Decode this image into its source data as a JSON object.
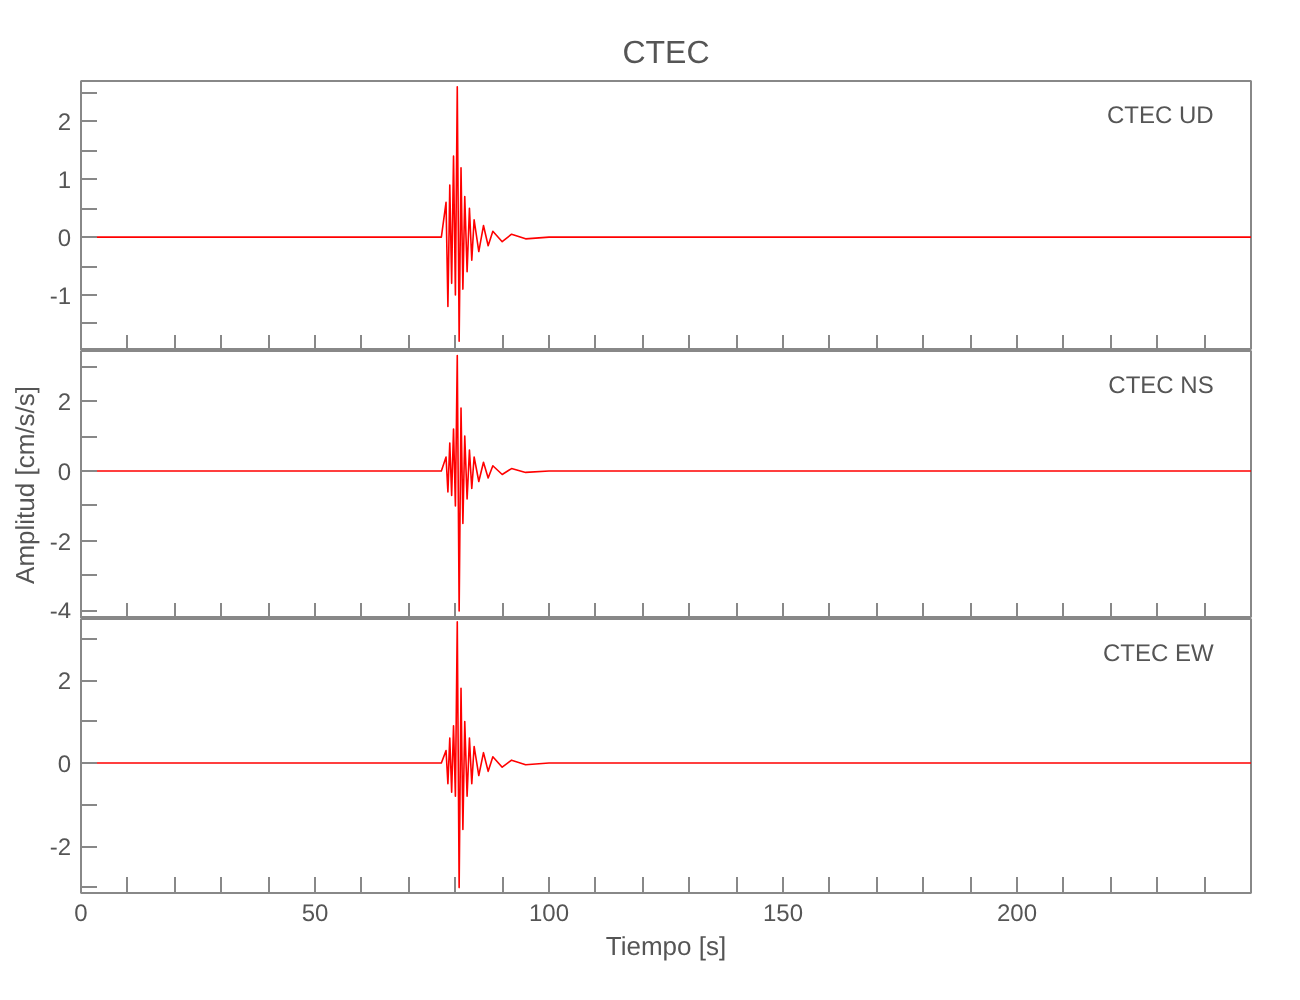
{
  "chart_data": [
    {
      "type": "line",
      "title": "CTEC",
      "annotations": [
        "CTEC   UD"
      ],
      "tick_labels": "y",
      "xlim": [
        0,
        250
      ],
      "ylim": [
        -1.97,
        2.7
      ],
      "xticks": [
        {
          "value": 0,
          "label": null
        },
        {
          "value": 10,
          "label": null
        },
        {
          "value": 20,
          "label": null
        },
        {
          "value": 30,
          "label": null
        },
        {
          "value": 40,
          "label": null
        },
        {
          "value": 50,
          "label": null
        },
        {
          "value": 60,
          "label": null
        },
        {
          "value": 70,
          "label": null
        },
        {
          "value": 80,
          "label": null
        },
        {
          "value": 90,
          "label": null
        },
        {
          "value": 100,
          "label": null
        },
        {
          "value": 110,
          "label": null
        },
        {
          "value": 120,
          "label": null
        },
        {
          "value": 130,
          "label": null
        },
        {
          "value": 140,
          "label": null
        },
        {
          "value": 150,
          "label": null
        },
        {
          "value": 160,
          "label": null
        },
        {
          "value": 170,
          "label": null
        },
        {
          "value": 180,
          "label": null
        },
        {
          "value": 190,
          "label": null
        },
        {
          "value": 200,
          "label": null
        },
        {
          "value": 210,
          "label": null
        },
        {
          "value": 220,
          "label": null
        },
        {
          "value": 230,
          "label": null
        },
        {
          "value": 240,
          "label": null
        }
      ],
      "yticks": [
        {
          "value": -1.5,
          "label": null
        },
        -1,
        {
          "value": -0.5,
          "label": null
        },
        0,
        {
          "value": 0.5,
          "label": null
        },
        1,
        {
          "value": 1.5,
          "label": null
        },
        2,
        {
          "value": 2.5,
          "label": null
        }
      ],
      "x": [
        0,
        77,
        78,
        78.4,
        78.8,
        79.2,
        79.6,
        80,
        80.4,
        80.8,
        81.2,
        81.6,
        82,
        82.5,
        83,
        83.5,
        84,
        85,
        86,
        87,
        88,
        90,
        92,
        95,
        100,
        250
      ],
      "series": [
        {
          "color": "#ff0000",
          "values": [
            0,
            0,
            0.6,
            -1.2,
            0.9,
            -0.8,
            1.4,
            -1.0,
            2.6,
            -1.8,
            1.2,
            -0.9,
            0.7,
            -0.6,
            0.5,
            -0.4,
            0.3,
            -0.25,
            0.2,
            -0.15,
            0.1,
            -0.08,
            0.05,
            -0.03,
            0,
            0
          ]
        }
      ]
    },
    {
      "type": "line",
      "ylabel": "Amplitud [cm/s/s]",
      "annotations": [
        "CTEC   NS"
      ],
      "tick_labels": "y",
      "xlim": [
        0,
        250
      ],
      "ylim": [
        -4.23,
        3.43
      ],
      "xticks": [
        {
          "value": 0,
          "label": null
        },
        {
          "value": 10,
          "label": null
        },
        {
          "value": 20,
          "label": null
        },
        {
          "value": 30,
          "label": null
        },
        {
          "value": 40,
          "label": null
        },
        {
          "value": 50,
          "label": null
        },
        {
          "value": 60,
          "label": null
        },
        {
          "value": 70,
          "label": null
        },
        {
          "value": 80,
          "label": null
        },
        {
          "value": 90,
          "label": null
        },
        {
          "value": 100,
          "label": null
        },
        {
          "value": 110,
          "label": null
        },
        {
          "value": 120,
          "label": null
        },
        {
          "value": 130,
          "label": null
        },
        {
          "value": 140,
          "label": null
        },
        {
          "value": 150,
          "label": null
        },
        {
          "value": 160,
          "label": null
        },
        {
          "value": 170,
          "label": null
        },
        {
          "value": 180,
          "label": null
        },
        {
          "value": 190,
          "label": null
        },
        {
          "value": 200,
          "label": null
        },
        {
          "value": 210,
          "label": null
        },
        {
          "value": 220,
          "label": null
        },
        {
          "value": 230,
          "label": null
        },
        {
          "value": 240,
          "label": null
        }
      ],
      "yticks": [
        -4,
        {
          "value": -3,
          "label": null
        },
        -2,
        {
          "value": -1,
          "label": null
        },
        0,
        {
          "value": 1,
          "label": null
        },
        2,
        {
          "value": 3,
          "label": null
        }
      ],
      "x": [
        0,
        77,
        78,
        78.4,
        78.8,
        79.2,
        79.6,
        80,
        80.4,
        80.8,
        81.2,
        81.6,
        82,
        82.5,
        83,
        83.5,
        84,
        85,
        86,
        87,
        88,
        90,
        92,
        95,
        100,
        250
      ],
      "series": [
        {
          "color": "#ff0000",
          "values": [
            0,
            0,
            0.4,
            -0.6,
            0.8,
            -0.7,
            1.2,
            -1.0,
            3.3,
            -4.0,
            1.8,
            -1.5,
            1.0,
            -0.8,
            0.6,
            -0.5,
            0.4,
            -0.3,
            0.25,
            -0.2,
            0.15,
            -0.1,
            0.07,
            -0.04,
            0,
            0
          ]
        }
      ]
    },
    {
      "type": "line",
      "xlabel": "Tiempo [s]",
      "annotations": [
        "CTEC   EW"
      ],
      "xlim": [
        0,
        250
      ],
      "ylim": [
        -3.13,
        3.47
      ],
      "xticks": [
        0,
        {
          "value": 10,
          "label": null
        },
        {
          "value": 20,
          "label": null
        },
        {
          "value": 30,
          "label": null
        },
        {
          "value": 40,
          "label": null
        },
        50,
        {
          "value": 60,
          "label": null
        },
        {
          "value": 70,
          "label": null
        },
        {
          "value": 80,
          "label": null
        },
        {
          "value": 90,
          "label": null
        },
        100,
        {
          "value": 110,
          "label": null
        },
        {
          "value": 120,
          "label": null
        },
        {
          "value": 130,
          "label": null
        },
        {
          "value": 140,
          "label": null
        },
        150,
        {
          "value": 160,
          "label": null
        },
        {
          "value": 170,
          "label": null
        },
        {
          "value": 180,
          "label": null
        },
        {
          "value": 190,
          "label": null
        },
        200,
        {
          "value": 210,
          "label": null
        },
        {
          "value": 220,
          "label": null
        },
        {
          "value": 230,
          "label": null
        },
        {
          "value": 240,
          "label": null
        }
      ],
      "yticks": [
        {
          "value": -3,
          "label": null
        },
        -2,
        {
          "value": -1,
          "label": null
        },
        0,
        {
          "value": 1,
          "label": null
        },
        2,
        {
          "value": 3,
          "label": null
        }
      ],
      "x": [
        0,
        77,
        78,
        78.4,
        78.8,
        79.2,
        79.6,
        80,
        80.4,
        80.8,
        81.2,
        81.6,
        82,
        82.5,
        83,
        83.5,
        84,
        85,
        86,
        87,
        88,
        90,
        92,
        95,
        100,
        250
      ],
      "series": [
        {
          "color": "#ff0000",
          "values": [
            0,
            0,
            0.3,
            -0.5,
            0.6,
            -0.7,
            0.9,
            -0.8,
            3.4,
            -3.0,
            1.8,
            -1.6,
            1.0,
            -0.8,
            0.6,
            -0.5,
            0.4,
            -0.3,
            0.25,
            -0.2,
            0.15,
            -0.1,
            0.07,
            -0.04,
            0,
            0
          ]
        }
      ]
    }
  ]
}
